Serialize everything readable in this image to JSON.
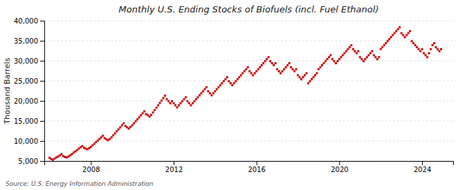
{
  "chart_data": {
    "type": "scatter",
    "title": "Monthly U.S. Ending Stocks of Biofuels (incl. Fuel Ethanol)",
    "y_label": "Thousand Barrels",
    "annotations": [
      "Source: U.S. Energy Information Administration"
    ],
    "color": "#cc0000",
    "marker": "square",
    "grid": true,
    "xlim": [
      2005.75,
      2025.5
    ],
    "xticks": [
      2008,
      2012,
      2016,
      2020,
      2024
    ],
    "ylim": [
      5000,
      40000
    ],
    "yticks": [
      {
        "value": 5000,
        "label": "5,000"
      },
      {
        "value": 10000,
        "label": "10,000"
      },
      {
        "value": 15000,
        "label": "15,000"
      },
      {
        "value": 20000,
        "label": "20,000"
      },
      {
        "value": 25000,
        "label": "25,000"
      },
      {
        "value": 30000,
        "label": "30,000"
      },
      {
        "value": 35000,
        "label": "35,000"
      },
      {
        "value": 40000,
        "label": "40,000"
      }
    ],
    "x": [
      2006,
      2006.083333,
      2006.166667,
      2006.25,
      2006.333333,
      2006.416667,
      2006.5,
      2006.583333,
      2006.666667,
      2006.75,
      2006.833333,
      2006.916667,
      2007,
      2007.083333,
      2007.166667,
      2007.25,
      2007.333333,
      2007.416667,
      2007.5,
      2007.583333,
      2007.666667,
      2007.75,
      2007.833333,
      2007.916667,
      2008,
      2008.083333,
      2008.166667,
      2008.25,
      2008.333333,
      2008.416667,
      2008.5,
      2008.583333,
      2008.666667,
      2008.75,
      2008.833333,
      2008.916667,
      2009,
      2009.083333,
      2009.166667,
      2009.25,
      2009.333333,
      2009.416667,
      2009.5,
      2009.583333,
      2009.666667,
      2009.75,
      2009.833333,
      2009.916667,
      2010,
      2010.083333,
      2010.166667,
      2010.25,
      2010.333333,
      2010.416667,
      2010.5,
      2010.583333,
      2010.666667,
      2010.75,
      2010.833333,
      2010.916667,
      2011,
      2011.083333,
      2011.166667,
      2011.25,
      2011.333333,
      2011.416667,
      2011.5,
      2011.583333,
      2011.666667,
      2011.75,
      2011.833333,
      2011.916667,
      2012,
      2012.083333,
      2012.166667,
      2012.25,
      2012.333333,
      2012.416667,
      2012.5,
      2012.583333,
      2012.666667,
      2012.75,
      2012.833333,
      2012.916667,
      2013,
      2013.083333,
      2013.166667,
      2013.25,
      2013.333333,
      2013.416667,
      2013.5,
      2013.583333,
      2013.666667,
      2013.75,
      2013.833333,
      2013.916667,
      2014,
      2014.083333,
      2014.166667,
      2014.25,
      2014.333333,
      2014.416667,
      2014.5,
      2014.583333,
      2014.666667,
      2014.75,
      2014.833333,
      2014.916667,
      2015,
      2015.083333,
      2015.166667,
      2015.25,
      2015.333333,
      2015.416667,
      2015.5,
      2015.583333,
      2015.666667,
      2015.75,
      2015.833333,
      2015.916667,
      2016,
      2016.083333,
      2016.166667,
      2016.25,
      2016.333333,
      2016.416667,
      2016.5,
      2016.583333,
      2016.666667,
      2016.75,
      2016.833333,
      2016.916667,
      2017,
      2017.083333,
      2017.166667,
      2017.25,
      2017.333333,
      2017.416667,
      2017.5,
      2017.583333,
      2017.666667,
      2017.75,
      2017.833333,
      2017.916667,
      2018,
      2018.083333,
      2018.166667,
      2018.25,
      2018.333333,
      2018.416667,
      2018.5,
      2018.583333,
      2018.666667,
      2018.75,
      2018.833333,
      2018.916667,
      2019,
      2019.083333,
      2019.166667,
      2019.25,
      2019.333333,
      2019.416667,
      2019.5,
      2019.583333,
      2019.666667,
      2019.75,
      2019.833333,
      2019.916667,
      2020,
      2020.083333,
      2020.166667,
      2020.25,
      2020.333333,
      2020.416667,
      2020.5,
      2020.583333,
      2020.666667,
      2020.75,
      2020.833333,
      2020.916667,
      2021,
      2021.083333,
      2021.166667,
      2021.25,
      2021.333333,
      2021.416667,
      2021.5,
      2021.583333,
      2021.666667,
      2021.75,
      2021.833333,
      2021.916667,
      2022,
      2022.083333,
      2022.166667,
      2022.25,
      2022.333333,
      2022.416667,
      2022.5,
      2022.583333,
      2022.666667,
      2022.75,
      2022.833333,
      2022.916667,
      2023,
      2023.083333,
      2023.166667,
      2023.25,
      2023.333333,
      2023.416667,
      2023.5,
      2023.583333,
      2023.666667,
      2023.75,
      2023.833333,
      2023.916667,
      2024,
      2024.083333,
      2024.166667,
      2024.25,
      2024.333333,
      2024.416667,
      2024.5,
      2024.583333,
      2024.666667,
      2024.75,
      2024.833333,
      2024.916667
    ],
    "values": [
      5800,
      5500,
      5300,
      5600,
      5900,
      6100,
      6400,
      6700,
      6200,
      6000,
      5900,
      6100,
      6400,
      6700,
      7100,
      7400,
      7700,
      8100,
      8400,
      8700,
      8300,
      8100,
      7900,
      8200,
      8500,
      8900,
      9300,
      9700,
      10100,
      10500,
      10900,
      11300,
      10700,
      10400,
      10200,
      10500,
      10900,
      11400,
      11900,
      12400,
      12900,
      13400,
      13900,
      14400,
      13700,
      13400,
      13100,
      13500,
      13900,
      14400,
      14900,
      15400,
      15900,
      16400,
      16900,
      17400,
      16700,
      16400,
      16100,
      16500,
      17100,
      17700,
      18300,
      18900,
      19500,
      20100,
      20700,
      21300,
      20400,
      19900,
      19400,
      19900,
      19400,
      18900,
      18400,
      18900,
      19400,
      19900,
      20400,
      20900,
      19900,
      19400,
      18900,
      19400,
      19900,
      20400,
      20900,
      21400,
      21900,
      22400,
      22900,
      23400,
      22400,
      21900,
      21400,
      21900,
      22400,
      22900,
      23400,
      23900,
      24400,
      24900,
      25400,
      25900,
      24900,
      24400,
      23900,
      24400,
      24900,
      25400,
      25900,
      26400,
      26900,
      27400,
      27900,
      28400,
      27400,
      26900,
      26400,
      26900,
      27400,
      27900,
      28400,
      28900,
      29400,
      29900,
      30400,
      30900,
      29900,
      29400,
      28900,
      29400,
      27900,
      27400,
      26900,
      27400,
      27900,
      28400,
      28900,
      29400,
      28400,
      27900,
      27400,
      27900,
      26400,
      25900,
      25400,
      25900,
      26400,
      26900,
      24400,
      24900,
      25400,
      25900,
      26400,
      26900,
      27900,
      28400,
      28900,
      29400,
      29900,
      30400,
      30900,
      31400,
      30400,
      29900,
      29400,
      29900,
      30400,
      30900,
      31400,
      31900,
      32400,
      32900,
      33400,
      33900,
      32900,
      32400,
      31900,
      32400,
      30900,
      30400,
      29900,
      30400,
      30900,
      31400,
      31900,
      32400,
      31400,
      30900,
      30400,
      30900,
      32900,
      33400,
      33900,
      34400,
      34900,
      35400,
      35900,
      36400,
      36900,
      37400,
      37900,
      38400,
      36900,
      36400,
      35900,
      36400,
      36900,
      37400,
      34900,
      34400,
      33900,
      33400,
      32900,
      32400,
      32900,
      31900,
      31400,
      30900,
      31900,
      32900,
      33900,
      34400,
      33400,
      32900,
      32400,
      32900
    ]
  }
}
